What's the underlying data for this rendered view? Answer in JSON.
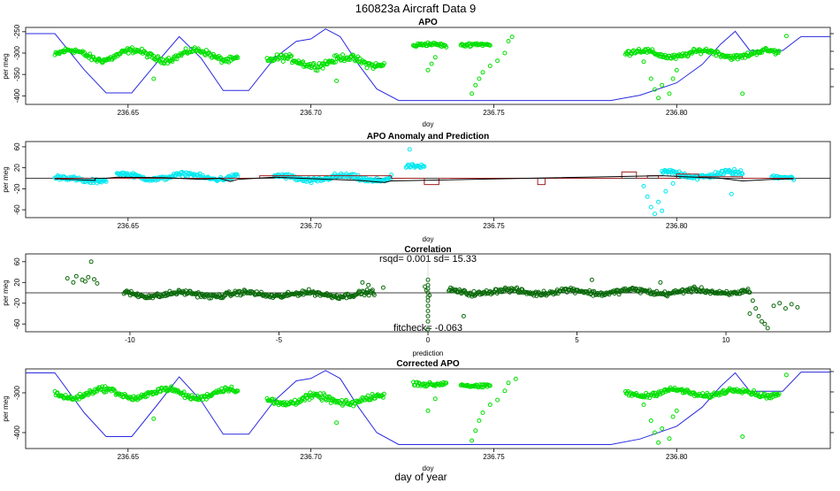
{
  "main_title": "160823a   Aircraft Data 9",
  "bottom_label": "day of year",
  "colors": {
    "apo_points": "#00e000",
    "altitude_line": "#2a2ae0",
    "anomaly_points": "#00e8f0",
    "prediction_line": "#a02020",
    "fit_line": "#000000",
    "correlation_points": "#0a6a0a"
  },
  "chart_data": [
    {
      "type": "scatter",
      "title": "APO",
      "xlabel": "doy",
      "ylabel": "per meg",
      "xlim": [
        236.622,
        236.842
      ],
      "ylim": [
        -420,
        -240
      ],
      "x_ticks": [
        "236.65",
        "236.70",
        "236.75",
        "236.80"
      ],
      "y_ticks": [
        "-400",
        "-350",
        "-300",
        "-250"
      ],
      "series": [
        {
          "name": "APO",
          "segments": [
            {
              "x0": 236.63,
              "x1": 236.68,
              "mean": -305,
              "amp": 12,
              "spread": 10
            },
            {
              "x0": 236.688,
              "x1": 236.72,
              "mean": -320,
              "amp": 10,
              "spread": 12
            },
            {
              "x0": 236.728,
              "x1": 236.737,
              "mean": -283,
              "amp": 4,
              "spread": 6
            },
            {
              "x0": 236.741,
              "x1": 236.749,
              "mean": -283,
              "amp": 4,
              "spread": 6
            },
            {
              "x0": 236.786,
              "x1": 236.828,
              "mean": -302,
              "amp": 8,
              "spread": 9
            }
          ]
        },
        {
          "name": "excursions",
          "points": [
            [
              236.732,
              -340
            ],
            [
              236.733,
              -325
            ],
            [
              236.734,
              -310
            ],
            [
              236.744,
              -395
            ],
            [
              236.745,
              -375
            ],
            [
              236.746,
              -360
            ],
            [
              236.747,
              -345
            ],
            [
              236.749,
              -330
            ],
            [
              236.751,
              -318
            ],
            [
              236.753,
              -300
            ],
            [
              236.754,
              -272
            ],
            [
              236.755,
              -262
            ],
            [
              236.791,
              -320
            ],
            [
              236.793,
              -360
            ],
            [
              236.794,
              -385
            ],
            [
              236.795,
              -405
            ],
            [
              236.796,
              -375
            ],
            [
              236.798,
              -395
            ],
            [
              236.799,
              -360
            ],
            [
              236.8,
              -340
            ],
            [
              236.657,
              -360
            ],
            [
              236.707,
              -365
            ],
            [
              236.818,
              -395
            ],
            [
              236.83,
              -260
            ]
          ]
        }
      ],
      "altitude": {
        "name": "aircraft altitude (relative)",
        "path": [
          [
            236.622,
            0.08
          ],
          [
            236.63,
            0.08
          ],
          [
            236.638,
            0.55
          ],
          [
            236.644,
            0.85
          ],
          [
            236.651,
            0.85
          ],
          [
            236.658,
            0.45
          ],
          [
            236.664,
            0.12
          ],
          [
            236.67,
            0.4
          ],
          [
            236.676,
            0.82
          ],
          [
            236.683,
            0.82
          ],
          [
            236.69,
            0.4
          ],
          [
            236.696,
            0.18
          ],
          [
            236.7,
            0.15
          ],
          [
            236.704,
            0.02
          ],
          [
            236.708,
            0.12
          ],
          [
            236.713,
            0.48
          ],
          [
            236.718,
            0.8
          ],
          [
            236.724,
            0.95
          ],
          [
            236.76,
            0.95
          ],
          [
            236.782,
            0.95
          ],
          [
            236.79,
            0.88
          ],
          [
            236.8,
            0.72
          ],
          [
            236.807,
            0.48
          ],
          [
            236.812,
            0.22
          ],
          [
            236.816,
            0.05
          ],
          [
            236.82,
            0.3
          ],
          [
            236.829,
            0.3
          ],
          [
            236.834,
            0.12
          ],
          [
            236.842,
            0.12
          ]
        ]
      }
    },
    {
      "type": "scatter",
      "title": "APO Anomaly and Prediction",
      "xlabel": "doy",
      "ylabel": "per meg",
      "xlim": [
        236.622,
        236.842
      ],
      "ylim": [
        -75,
        70
      ],
      "x_ticks": [
        "236.65",
        "236.70",
        "236.75",
        "236.80"
      ],
      "y_ticks": [
        "-60",
        "-20",
        "20",
        "60"
      ],
      "series": [
        {
          "name": "anomaly",
          "segments": [
            {
              "x0": 236.63,
              "x1": 236.644,
              "mean": -2,
              "amp": 4,
              "spread": 6
            },
            {
              "x0": 236.647,
              "x1": 236.68,
              "mean": 3,
              "amp": 5,
              "spread": 6
            },
            {
              "x0": 236.69,
              "x1": 236.722,
              "mean": 0,
              "amp": 5,
              "spread": 7
            },
            {
              "x0": 236.726,
              "x1": 236.731,
              "mean": 20,
              "amp": 3,
              "spread": 5
            },
            {
              "x0": 236.796,
              "x1": 236.818,
              "mean": 7,
              "amp": 5,
              "spread": 8
            },
            {
              "x0": 236.826,
              "x1": 236.832,
              "mean": 0,
              "amp": 3,
              "spread": 5
            }
          ]
        },
        {
          "name": "anomaly dips",
          "points": [
            [
              236.791,
              -15
            ],
            [
              236.792,
              -35
            ],
            [
              236.793,
              -55
            ],
            [
              236.794,
              -68
            ],
            [
              236.795,
              -45
            ],
            [
              236.796,
              -62
            ],
            [
              236.797,
              -25
            ],
            [
              236.799,
              -10
            ],
            [
              236.727,
              55
            ],
            [
              236.815,
              -30
            ]
          ]
        },
        {
          "name": "prediction",
          "path": [
            [
              236.63,
              0
            ],
            [
              236.686,
              0
            ],
            [
              236.686,
              5
            ],
            [
              236.722,
              5
            ],
            [
              236.722,
              0
            ],
            [
              236.725,
              0
            ],
            [
              236.725,
              0
            ],
            [
              236.731,
              0
            ],
            [
              236.731,
              -12
            ],
            [
              236.735,
              -12
            ],
            [
              236.735,
              0
            ],
            [
              236.762,
              0
            ],
            [
              236.762,
              -12
            ],
            [
              236.764,
              -12
            ],
            [
              236.764,
              0
            ],
            [
              236.785,
              0
            ],
            [
              236.785,
              12
            ],
            [
              236.789,
              12
            ],
            [
              236.789,
              0
            ],
            [
              236.792,
              0
            ],
            [
              236.792,
              5
            ],
            [
              236.795,
              5
            ],
            [
              236.795,
              0
            ],
            [
              236.8,
              0
            ],
            [
              236.8,
              8
            ],
            [
              236.806,
              8
            ],
            [
              236.806,
              3
            ],
            [
              236.818,
              3
            ],
            [
              236.818,
              0
            ],
            [
              236.832,
              0
            ]
          ]
        },
        {
          "name": "fit",
          "path": [
            [
              236.63,
              -1
            ],
            [
              236.641,
              -4
            ],
            [
              236.641,
              0
            ],
            [
              236.644,
              0
            ],
            [
              236.647,
              2
            ],
            [
              236.66,
              1
            ],
            [
              236.67,
              -2
            ],
            [
              236.675,
              0
            ],
            [
              236.678,
              -6
            ],
            [
              236.68,
              -2
            ],
            [
              236.69,
              2
            ],
            [
              236.705,
              -2
            ],
            [
              236.713,
              -4
            ],
            [
              236.72,
              -8
            ],
            [
              236.722,
              -5
            ],
            [
              236.796,
              5
            ],
            [
              236.805,
              2
            ],
            [
              236.812,
              0
            ],
            [
              236.818,
              -5
            ],
            [
              236.826,
              -2
            ],
            [
              236.832,
              -1
            ]
          ]
        }
      ],
      "zero_line": 0
    },
    {
      "type": "scatter",
      "title": "Correlation",
      "subtitle": "rsqd= 0.001 sd= 15.33",
      "annotation": "fitcheck= -0.063",
      "xlabel": "prediction",
      "ylabel": "per meg",
      "xlim": [
        -13.5,
        13.5
      ],
      "ylim": [
        -75,
        75
      ],
      "x_ticks": [
        "-10",
        "-5",
        "0",
        "5",
        "10"
      ],
      "y_ticks": [
        "-60",
        "-20",
        "20",
        "60"
      ],
      "series": [
        {
          "name": "correlation",
          "segments": [
            {
              "x0": -10.2,
              "x1": -1.8,
              "mean": -3,
              "amp": 4,
              "spread": 7
            },
            {
              "x0": 0.7,
              "x1": 10.8,
              "mean": 2,
              "amp": 4,
              "spread": 7
            }
          ]
        },
        {
          "name": "correlation extras",
          "points": [
            [
              -12.1,
              28
            ],
            [
              -11.9,
              20
            ],
            [
              -11.8,
              32
            ],
            [
              -11.6,
              25
            ],
            [
              -11.5,
              22
            ],
            [
              -11.4,
              30
            ],
            [
              -11.2,
              26
            ],
            [
              -11.1,
              18
            ],
            [
              -11.3,
              60
            ],
            [
              0,
              -70
            ],
            [
              0,
              -55
            ],
            [
              0,
              -45
            ],
            [
              0,
              -35
            ],
            [
              0,
              -25
            ],
            [
              0,
              -15
            ],
            [
              0,
              -8
            ],
            [
              0,
              0
            ],
            [
              0,
              8
            ],
            [
              0,
              15
            ],
            [
              0,
              25
            ],
            [
              -0.05,
              5
            ],
            [
              0.05,
              -5
            ],
            [
              -0.1,
              12
            ],
            [
              11.0,
              -30
            ],
            [
              11.1,
              -45
            ],
            [
              11.2,
              -55
            ],
            [
              11.3,
              -60
            ],
            [
              11.4,
              -68
            ],
            [
              11.6,
              -25
            ],
            [
              11.8,
              -20
            ],
            [
              12.0,
              -30
            ],
            [
              12.2,
              -22
            ],
            [
              12.4,
              -28
            ],
            [
              10.8,
              -40
            ],
            [
              10.9,
              -15
            ],
            [
              1.2,
              -45
            ],
            [
              -2.2,
              20
            ],
            [
              -2.0,
              15
            ],
            [
              -1.5,
              10
            ],
            [
              5.5,
              25
            ],
            [
              7.8,
              20
            ]
          ]
        }
      ],
      "zero_line": 0
    },
    {
      "type": "scatter",
      "title": "Corrected APO",
      "xlabel": "doy",
      "ylabel": "per meg",
      "xlim": [
        236.622,
        236.842
      ],
      "ylim": [
        -440,
        -240
      ],
      "x_ticks": [
        "236.65",
        "236.70",
        "236.75",
        "236.80"
      ],
      "y_ticks": [
        "-400",
        "-300"
      ],
      "series": [
        {
          "name": "corrected APO",
          "segments": [
            {
              "x0": 236.63,
              "x1": 236.68,
              "mean": -302,
              "amp": 12,
              "spread": 10
            },
            {
              "x0": 236.688,
              "x1": 236.72,
              "mean": -318,
              "amp": 10,
              "spread": 12
            },
            {
              "x0": 236.728,
              "x1": 236.737,
              "mean": -275,
              "amp": 5,
              "spread": 8
            },
            {
              "x0": 236.741,
              "x1": 236.749,
              "mean": -280,
              "amp": 4,
              "spread": 6
            },
            {
              "x0": 236.786,
              "x1": 236.828,
              "mean": -300,
              "amp": 8,
              "spread": 9
            }
          ]
        },
        {
          "name": "corrected excursions",
          "points": [
            [
              236.732,
              -345
            ],
            [
              236.734,
              -315
            ],
            [
              236.744,
              -420
            ],
            [
              236.745,
              -395
            ],
            [
              236.746,
              -370
            ],
            [
              236.747,
              -350
            ],
            [
              236.749,
              -330
            ],
            [
              236.751,
              -318
            ],
            [
              236.753,
              -295
            ],
            [
              236.754,
              -275
            ],
            [
              236.756,
              -265
            ],
            [
              236.791,
              -330
            ],
            [
              236.793,
              -370
            ],
            [
              236.794,
              -400
            ],
            [
              236.795,
              -425
            ],
            [
              236.796,
              -390
            ],
            [
              236.798,
              -415
            ],
            [
              236.799,
              -360
            ],
            [
              236.8,
              -345
            ],
            [
              236.657,
              -365
            ],
            [
              236.707,
              -375
            ],
            [
              236.818,
              -410
            ],
            [
              236.83,
              -255
            ]
          ]
        }
      ],
      "altitude": {
        "name": "aircraft altitude (relative)",
        "path": [
          [
            236.622,
            0.05
          ],
          [
            236.63,
            0.05
          ],
          [
            236.638,
            0.55
          ],
          [
            236.644,
            0.85
          ],
          [
            236.651,
            0.85
          ],
          [
            236.658,
            0.45
          ],
          [
            236.664,
            0.1
          ],
          [
            236.67,
            0.4
          ],
          [
            236.676,
            0.82
          ],
          [
            236.683,
            0.82
          ],
          [
            236.69,
            0.4
          ],
          [
            236.696,
            0.15
          ],
          [
            236.7,
            0.12
          ],
          [
            236.704,
            0.02
          ],
          [
            236.708,
            0.12
          ],
          [
            236.713,
            0.48
          ],
          [
            236.718,
            0.8
          ],
          [
            236.724,
            0.95
          ],
          [
            236.782,
            0.95
          ],
          [
            236.79,
            0.88
          ],
          [
            236.8,
            0.72
          ],
          [
            236.807,
            0.48
          ],
          [
            236.812,
            0.22
          ],
          [
            236.816,
            0.05
          ],
          [
            236.82,
            0.28
          ],
          [
            236.829,
            0.28
          ],
          [
            236.834,
            0.04
          ],
          [
            236.842,
            0.04
          ]
        ]
      }
    }
  ]
}
